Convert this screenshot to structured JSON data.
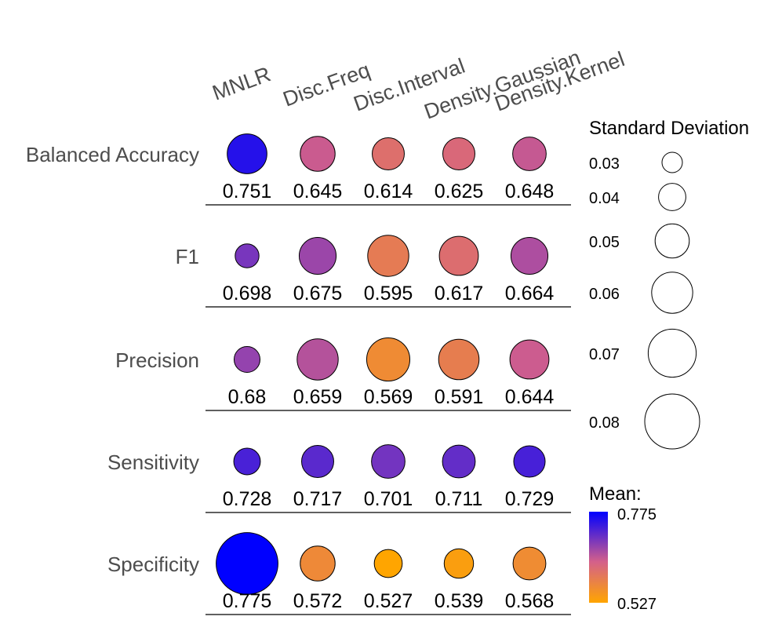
{
  "chart_data": {
    "type": "bubble-matrix",
    "columns": [
      "MNLR",
      "Disc.Freq",
      "Disc.Interval",
      "Density.Gaussian",
      "Density.Kernel"
    ],
    "rows": [
      {
        "metric": "Balanced Accuracy",
        "mean": [
          0.751,
          0.645,
          0.614,
          0.625,
          0.648
        ],
        "sd": [
          0.058,
          0.051,
          0.047,
          0.047,
          0.049
        ]
      },
      {
        "metric": "F1",
        "mean": [
          0.698,
          0.675,
          0.595,
          0.617,
          0.664
        ],
        "sd": [
          0.035,
          0.054,
          0.06,
          0.057,
          0.054
        ]
      },
      {
        "metric": "Precision",
        "mean": [
          0.68,
          0.659,
          0.569,
          0.591,
          0.644
        ],
        "sd": [
          0.038,
          0.06,
          0.063,
          0.059,
          0.057
        ]
      },
      {
        "metric": "Sensitivity",
        "mean": [
          0.728,
          0.717,
          0.701,
          0.711,
          0.729
        ],
        "sd": [
          0.039,
          0.047,
          0.049,
          0.048,
          0.046
        ]
      },
      {
        "metric": "Specificity",
        "mean": [
          0.775,
          0.572,
          0.527,
          0.539,
          0.568
        ],
        "sd": [
          0.09,
          0.051,
          0.041,
          0.043,
          0.048
        ]
      }
    ],
    "value_labels": [
      [
        "0.751",
        "0.645",
        "0.614",
        "0.625",
        "0.648"
      ],
      [
        "0.698",
        "0.675",
        "0.595",
        "0.617",
        "0.664"
      ],
      [
        "0.68",
        "0.659",
        "0.569",
        "0.591",
        "0.644"
      ],
      [
        "0.728",
        "0.717",
        "0.701",
        "0.711",
        "0.729"
      ],
      [
        "0.775",
        "0.572",
        "0.527",
        "0.539",
        "0.568"
      ]
    ],
    "size_legend": {
      "title": "Standard Deviation",
      "values": [
        0.03,
        0.04,
        0.05,
        0.06,
        0.07,
        0.08
      ],
      "labels": [
        "0.03",
        "0.04",
        "0.05",
        "0.06",
        "0.07",
        "0.08"
      ]
    },
    "color_legend": {
      "title": "Mean:",
      "min": 0.527,
      "max": 0.775,
      "min_label": "0.527",
      "max_label": "0.775",
      "color_low": "#ffa500",
      "color_mid": "#d4608a",
      "color_high": "#0000ff"
    }
  }
}
